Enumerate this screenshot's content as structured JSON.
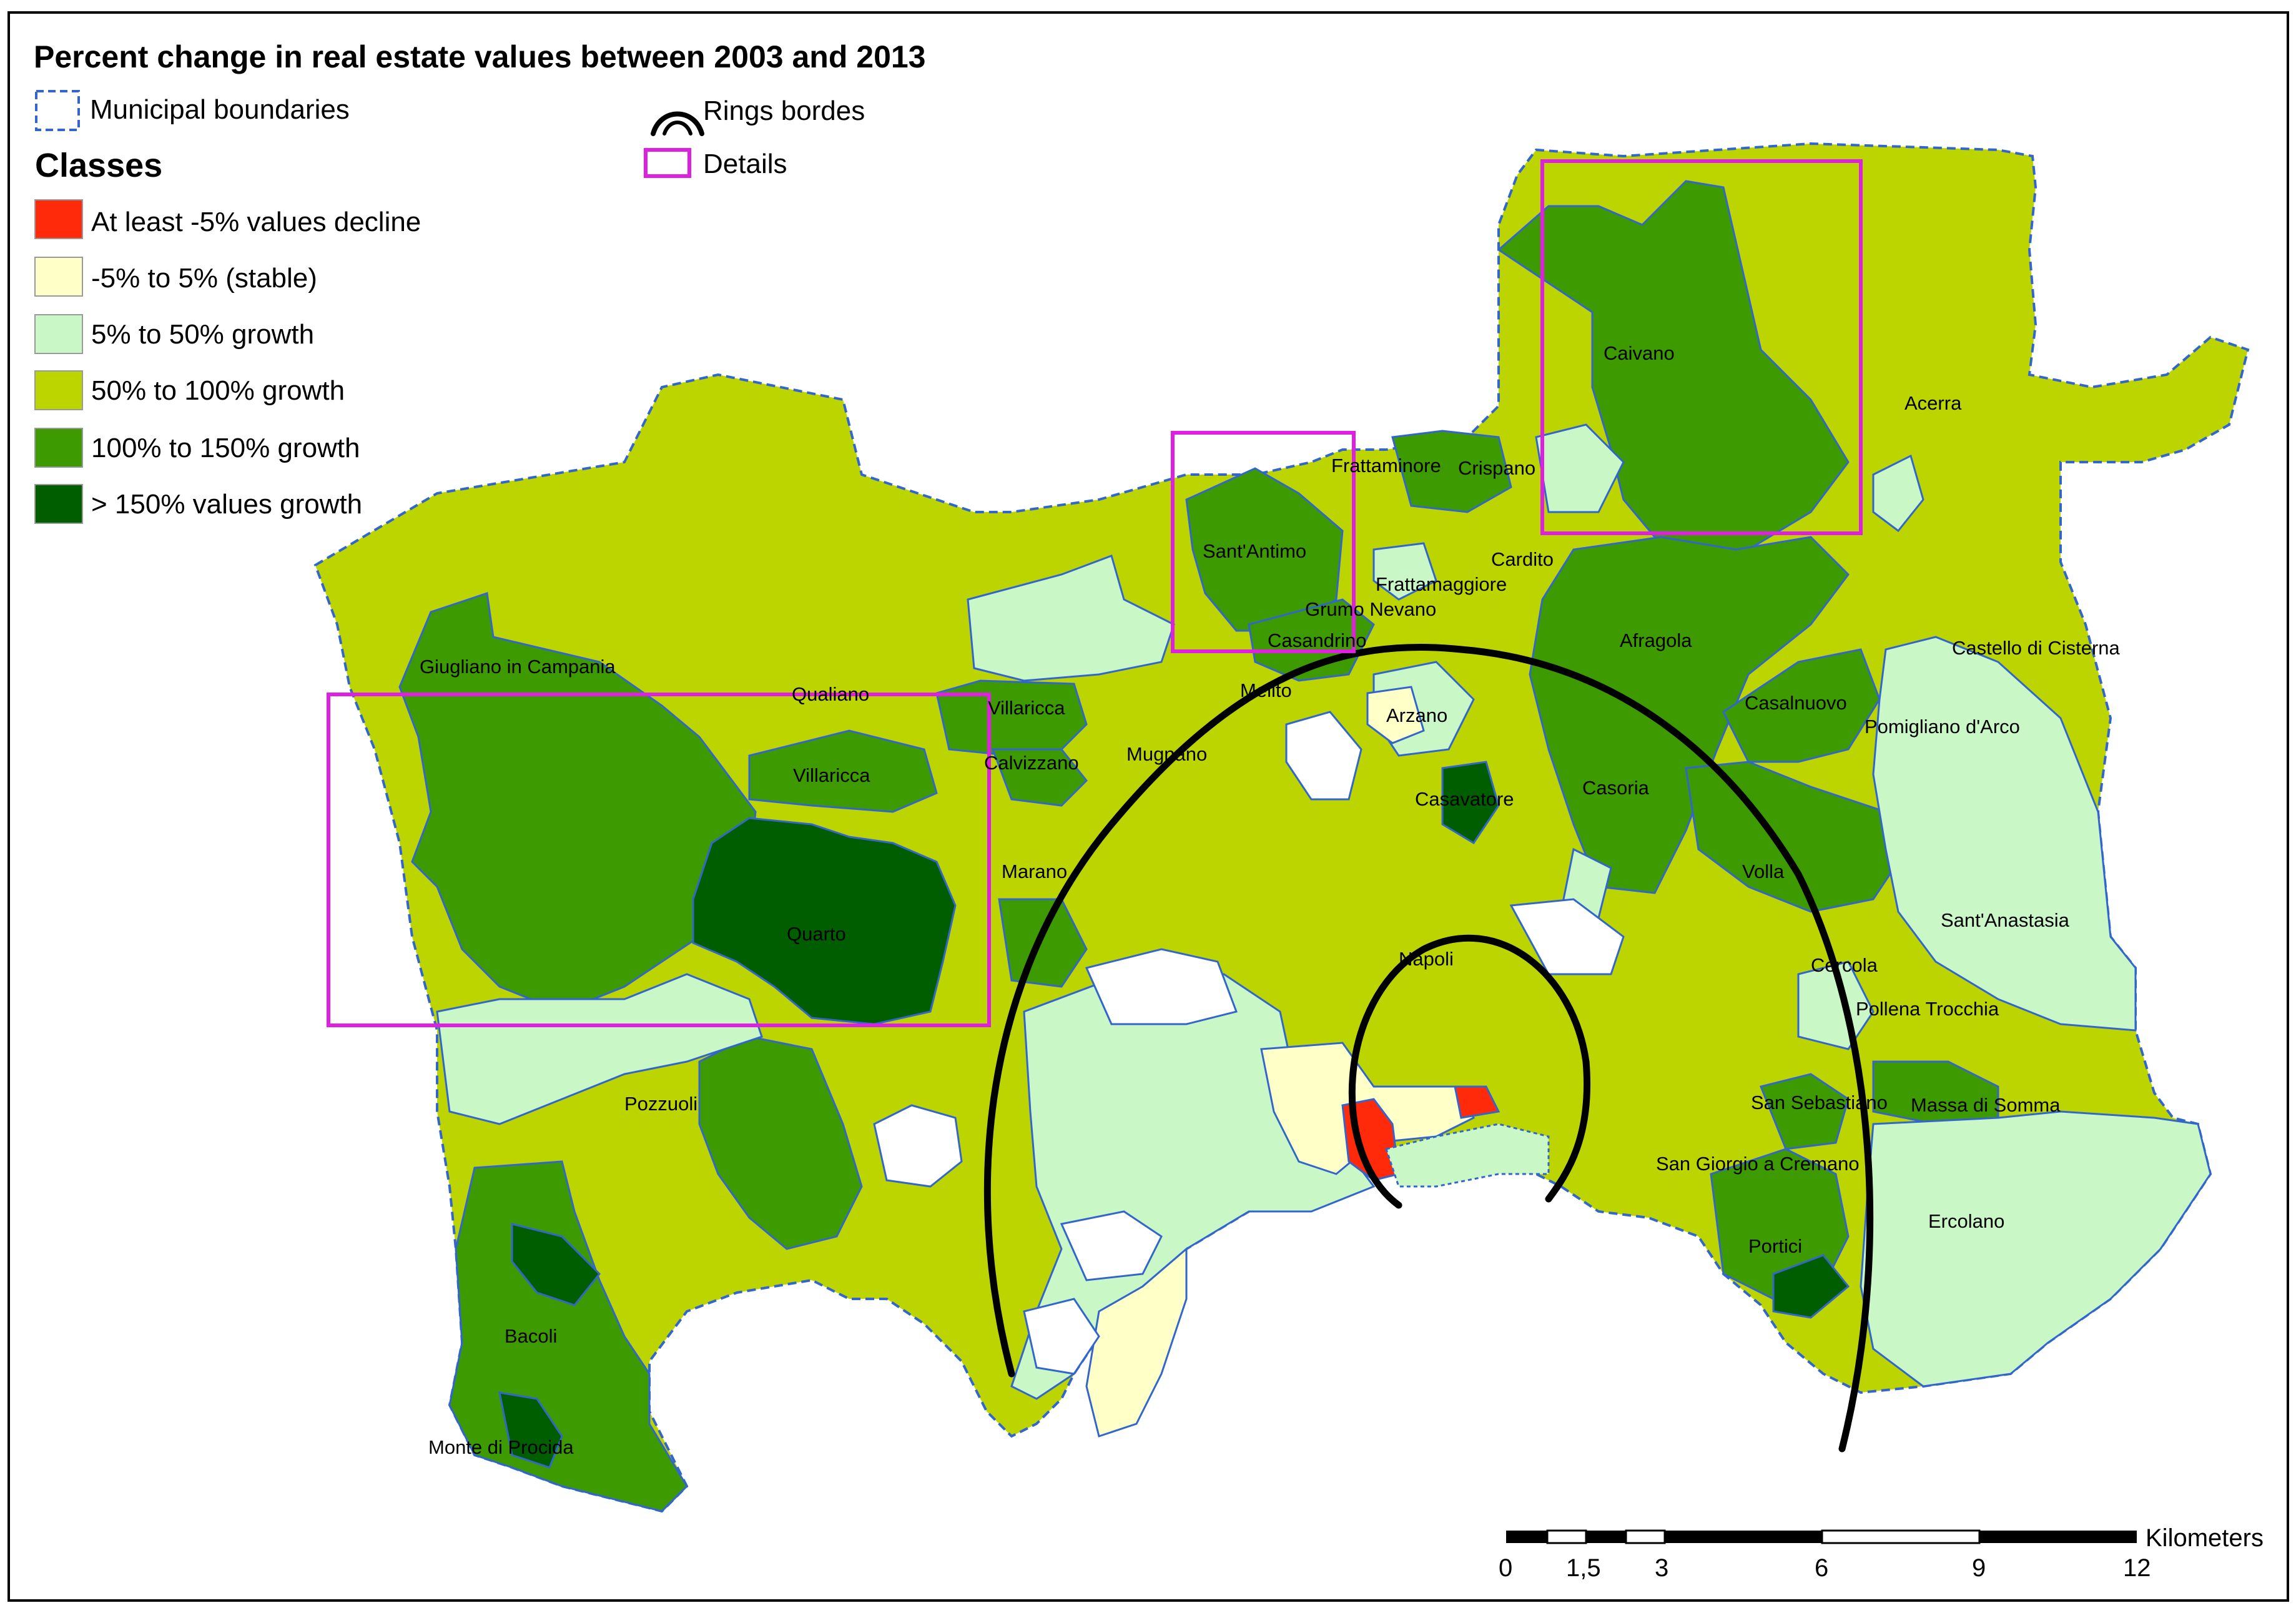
{
  "title": "Percent change in real estate values between 2003 and 2013",
  "legend": {
    "municipal_boundaries": "Municipal boundaries",
    "rings_borders": "Rings bordes",
    "details": "Details",
    "classes_heading": "Classes",
    "classes": [
      {
        "label": "At least -5% values decline",
        "color": "#ff2a0a"
      },
      {
        "label": "-5% to 5% (stable)",
        "color": "#ffffc8"
      },
      {
        "label": "5% to 50% growth",
        "color": "#c9f7c5"
      },
      {
        "label": "50% to 100% growth",
        "color": "#bcd500"
      },
      {
        "label": "100% to 150% growth",
        "color": "#3d9a00"
      },
      {
        "label": "> 150% values growth",
        "color": "#005e00"
      }
    ],
    "boundary_color": "#3366cc",
    "details_color": "#e020e0",
    "rings_color": "#000000"
  },
  "places": [
    "Caivano",
    "Acerra",
    "Frattaminore",
    "Crispano",
    "Sant'Antimo",
    "Frattamaggiore",
    "Cardito",
    "Grumo Nevano",
    "Casandrino",
    "Afragola",
    "Castello di Cisterna",
    "Giugliano in Campania",
    "Qualiano",
    "Villaricca",
    "Melito",
    "Arzano",
    "Casalnuovo",
    "Pomigliano d'Arco",
    "Calvizzano",
    "Mugnano",
    "Casavatore",
    "Casoria",
    "Marano",
    "Quarto",
    "Volla",
    "Sant'Anastasia",
    "Napoli",
    "Cercola",
    "Pollena Trocchia",
    "Pozzuoli",
    "San Sebastiano",
    "Massa di Somma",
    "San Giorgio a Cremano",
    "Ercolano",
    "Portici",
    "Bacoli",
    "Monte di Procida"
  ],
  "scale": {
    "unit": "Kilometers",
    "ticks": [
      "0",
      "1,5",
      "3",
      "6",
      "9",
      "12"
    ]
  }
}
